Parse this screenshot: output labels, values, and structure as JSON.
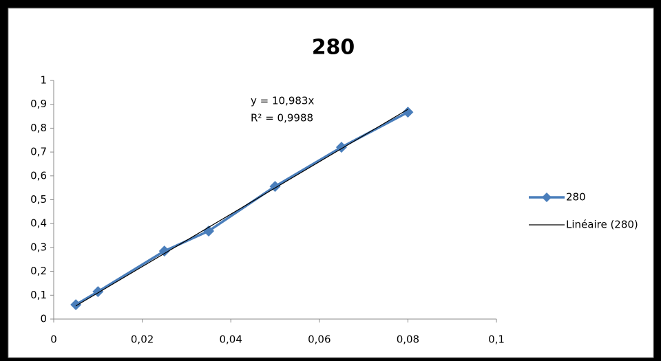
{
  "chart_data": {
    "type": "scatter-line",
    "title": "280",
    "annotations": [
      "y = 10,983x",
      "R² = 0,9988"
    ],
    "series": [
      {
        "name": "280",
        "color": "#4a7ebb",
        "x": [
          0.005,
          0.01,
          0.025,
          0.035,
          0.05,
          0.065,
          0.08
        ],
        "values": [
          0.06,
          0.115,
          0.285,
          0.369,
          0.556,
          0.72,
          0.867
        ]
      },
      {
        "name": "Linéaire (280)",
        "color": "#000000",
        "x": [
          0.005,
          0.08
        ],
        "values": [
          0.055,
          0.879
        ]
      }
    ],
    "xlim": [
      0,
      0.1
    ],
    "ylim": [
      0,
      1
    ],
    "xticks": [
      0,
      {
        "value": 0.02,
        "label": "0,02"
      },
      {
        "value": 0.04,
        "label": "0,04"
      },
      {
        "value": 0.06,
        "label": "0,06"
      },
      {
        "value": 0.08,
        "label": "0,08"
      },
      {
        "value": 0.1,
        "label": "0,1"
      }
    ],
    "yticks": [
      0,
      {
        "value": 0.1,
        "label": "0,1"
      },
      {
        "value": 0.2,
        "label": "0,2"
      },
      {
        "value": 0.3,
        "label": "0,3"
      },
      {
        "value": 0.4,
        "label": "0,4"
      },
      {
        "value": 0.5,
        "label": "0,5"
      },
      {
        "value": 0.6,
        "label": "0,6"
      },
      {
        "value": 0.7,
        "label": "0,7"
      },
      {
        "value": 0.8,
        "label": "0,8"
      },
      {
        "value": 0.9,
        "label": "0,9"
      },
      1
    ],
    "grid": false
  }
}
